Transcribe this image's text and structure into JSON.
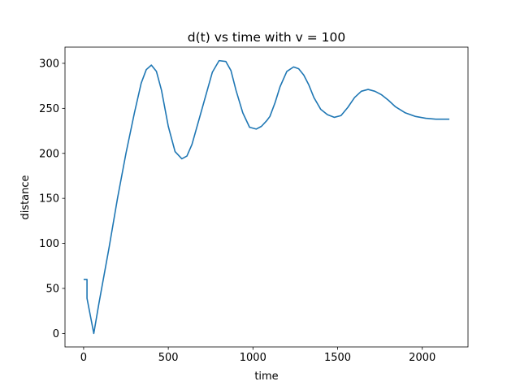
{
  "chart_data": {
    "type": "line",
    "title": "d(t) vs time with v = 100",
    "xlabel": "time",
    "ylabel": "distance",
    "xlim": [
      -110,
      2270
    ],
    "ylim": [
      -15,
      318
    ],
    "xticks": [
      0,
      500,
      1000,
      1500,
      2000
    ],
    "yticks": [
      0,
      50,
      100,
      150,
      200,
      250,
      300
    ],
    "xtick_labels": [
      "0",
      "500",
      "1000",
      "1500",
      "2000"
    ],
    "ytick_labels": [
      "0",
      "50",
      "100",
      "150",
      "200",
      "250",
      "300"
    ],
    "grid": false,
    "legend": "none",
    "line_color": "#1f77b4",
    "series": [
      {
        "x": [
          0,
          20,
          20,
          60,
          90,
          150,
          200,
          250,
          300,
          340,
          370,
          400,
          430,
          460,
          500,
          540,
          580,
          610,
          640,
          700,
          760,
          800,
          840,
          870,
          900,
          940,
          980,
          1020,
          1050,
          1080,
          1100,
          1130,
          1160,
          1200,
          1240,
          1270,
          1300,
          1330,
          1360,
          1400,
          1440,
          1480,
          1520,
          1560,
          1600,
          1640,
          1680,
          1720,
          1760,
          1800,
          1840,
          1900,
          1960,
          2020,
          2080,
          2120,
          2160
        ],
        "y": [
          60,
          60,
          39,
          0,
          33,
          95,
          150,
          200,
          245,
          278,
          293,
          298,
          291,
          270,
          230,
          202,
          194,
          197,
          210,
          250,
          290,
          303,
          302,
          292,
          270,
          245,
          229,
          227,
          230,
          236,
          241,
          256,
          274,
          291,
          296,
          294,
          287,
          276,
          262,
          249,
          243,
          240,
          242,
          251,
          262,
          269,
          271,
          269,
          265,
          259,
          252,
          245,
          241,
          239,
          238,
          238,
          238
        ]
      }
    ]
  }
}
